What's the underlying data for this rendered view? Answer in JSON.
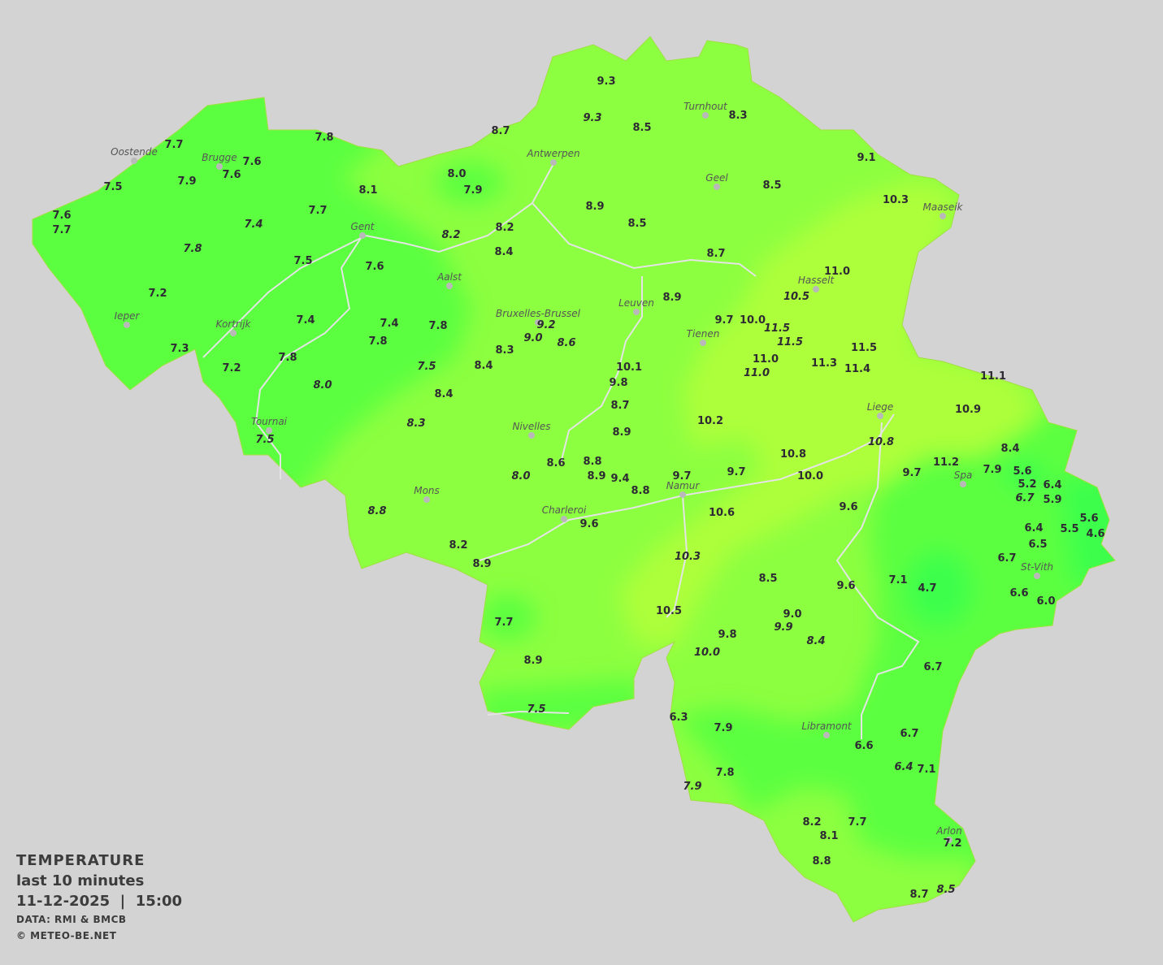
{
  "legend": {
    "title": "TEMPERATURE",
    "period": "last 10 minutes",
    "datetime": "11-12-2025  |  15:00",
    "source": "DATA: RMI & BMCB",
    "copyright": "© METEO-BE.NET"
  },
  "colors": {
    "background": "#d3d3d3",
    "cold": "#3cff4c",
    "cool": "#5cff40",
    "mild": "#8cff40",
    "warm": "#adff3a",
    "rivers": "#dddddd"
  },
  "cities": [
    "Oostende",
    "Brugge",
    "Gent",
    "Antwerpen",
    "Turnhout",
    "Geel",
    "Maaseik",
    "Hasselt",
    "Aalst",
    "Ieper",
    "Kortrijk",
    "Bruxelles-Brussel",
    "Leuven",
    "Tienen",
    "Liege",
    "Tournai",
    "Nivelles",
    "Spa",
    "Mons",
    "Namur",
    "Charleroi",
    "St-Vith",
    "Libramont",
    "Arlon"
  ],
  "temperatures": [
    "7.7",
    "7.6",
    "7.6",
    "7.8",
    "7.5",
    "7.9",
    "7.6",
    "7.7",
    "7.4",
    "7.7",
    "7.8",
    "7.5",
    "7.6",
    "7.2",
    "7.4",
    "7.4",
    "7.8",
    "7.8",
    "7.3",
    "7.2",
    "7.8",
    "8.0",
    "7.5",
    "7.5",
    "8.1",
    "8.0",
    "7.9",
    "8.7",
    "9.3",
    "9.3",
    "8.5",
    "8.3",
    "9.1",
    "8.5",
    "10.3",
    "8.9",
    "8.5",
    "8.2",
    "8.2",
    "8.4",
    "8.7",
    "11.0",
    "10.5",
    "8.9",
    "9.7",
    "10.0",
    "11.5",
    "11.5",
    "9.2",
    "9.0",
    "8.6",
    "8.3",
    "8.4",
    "10.1",
    "11.0",
    "11.0",
    "11.3",
    "11.5",
    "11.4",
    "11.1",
    "9.8",
    "8.4",
    "8.7",
    "10.9",
    "8.3",
    "10.2",
    "8.9",
    "10.8",
    "8.4",
    "10.8",
    "8.6",
    "8.8",
    "8.9",
    "9.4",
    "8.0",
    "9.7",
    "9.7",
    "10.0",
    "9.7",
    "11.2",
    "7.9",
    "5.6",
    "5.2",
    "6.4",
    "6.7",
    "5.9",
    "8.8",
    "8.8",
    "10.6",
    "9.6",
    "9.6",
    "6.4",
    "5.6",
    "5.5",
    "4.6",
    "6.5",
    "8.2",
    "8.9",
    "10.3",
    "6.7",
    "8.5",
    "7.1",
    "4.7",
    "9.6",
    "6.6",
    "6.0",
    "10.5",
    "9.0",
    "9.9",
    "7.7",
    "9.8",
    "8.4",
    "10.0",
    "8.9",
    "6.7",
    "7.5",
    "6.3",
    "7.9",
    "6.7",
    "6.6",
    "6.4",
    "7.1",
    "7.8",
    "7.9",
    "8.2",
    "7.7",
    "8.1",
    "7.2",
    "8.8",
    "8.7",
    "8.5"
  ]
}
